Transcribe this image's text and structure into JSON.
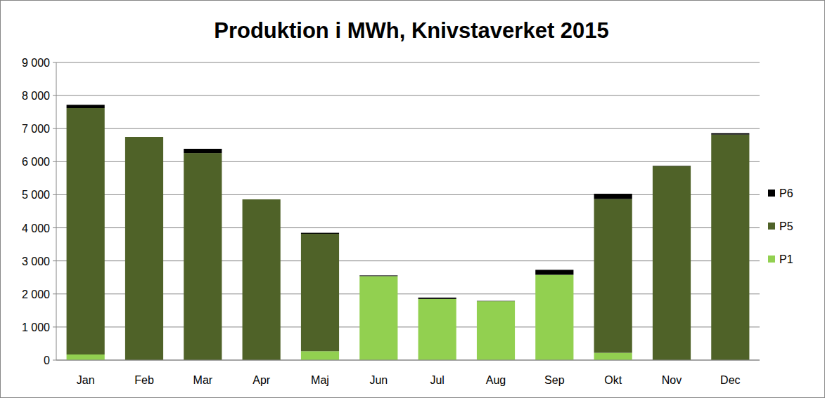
{
  "chart_data": {
    "type": "bar",
    "title": "Produktion i MWh, Knivstaverket 2015",
    "categories": [
      "Jan",
      "Feb",
      "Mar",
      "Apr",
      "Maj",
      "Jun",
      "Jul",
      "Aug",
      "Sep",
      "Okt",
      "Nov",
      "Dec"
    ],
    "series": [
      {
        "name": "P1",
        "color": "#92d050",
        "values": [
          170,
          0,
          0,
          0,
          270,
          2540,
          1850,
          1780,
          2580,
          220,
          0,
          0
        ]
      },
      {
        "name": "P5",
        "color": "#4f6228",
        "values": [
          7450,
          6750,
          6260,
          4860,
          3550,
          0,
          0,
          0,
          0,
          4650,
          5870,
          6820
        ]
      },
      {
        "name": "P6",
        "color": "#000000",
        "values": [
          100,
          0,
          130,
          0,
          30,
          20,
          40,
          10,
          150,
          160,
          10,
          40
        ]
      }
    ],
    "stacked": true,
    "ylim": [
      0,
      9000
    ],
    "yticks": [
      0,
      {
        "value": 1000,
        "label": "1 000"
      },
      {
        "value": 2000,
        "label": "2 000"
      },
      {
        "value": 3000,
        "label": "3 000"
      },
      {
        "value": 4000,
        "label": "4 000"
      },
      {
        "value": 5000,
        "label": "5 000"
      },
      {
        "value": 6000,
        "label": "6 000"
      },
      {
        "value": 7000,
        "label": "7 000"
      },
      {
        "value": 8000,
        "label": "8 000"
      },
      {
        "value": 9000,
        "label": "9 000"
      }
    ],
    "grid": true,
    "legend": "right"
  }
}
